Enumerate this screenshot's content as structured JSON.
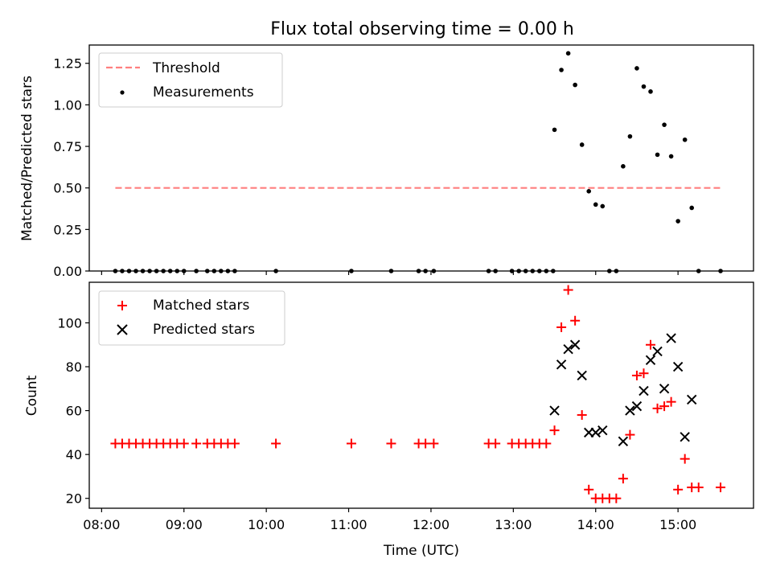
{
  "title": "Flux total observing time = 0.00 h",
  "chart_data": [
    {
      "type": "scatter",
      "ylabel": "Matched/Predicted stars",
      "ylim": [
        0,
        1.36
      ],
      "xlim": [
        "07:51",
        "15:55"
      ],
      "y_ticks": [
        0,
        0.25,
        0.5,
        0.75,
        1.0,
        1.25
      ],
      "y_tick_labels": [
        "0.00",
        "0.25",
        "0.50",
        "0.75",
        "1.00",
        "1.25"
      ],
      "legend": {
        "placement": "upper left",
        "entries": [
          "Threshold",
          "Measurements"
        ]
      },
      "threshold": {
        "name": "Threshold",
        "x_start": "08:10",
        "x_end": "15:32",
        "y": 0.5,
        "color": "#ff7f7f",
        "style": "dashed"
      },
      "series": [
        {
          "name": "Measurements",
          "color": "#000000",
          "marker": "dot",
          "points": [
            [
              "08:10",
              0
            ],
            [
              "08:15",
              0
            ],
            [
              "08:20",
              0
            ],
            [
              "08:25",
              0
            ],
            [
              "08:30",
              0
            ],
            [
              "08:35",
              0
            ],
            [
              "08:40",
              0
            ],
            [
              "08:45",
              0
            ],
            [
              "08:50",
              0
            ],
            [
              "08:55",
              0
            ],
            [
              "09:00",
              0
            ],
            [
              "09:09",
              0
            ],
            [
              "09:17",
              0
            ],
            [
              "09:22",
              0
            ],
            [
              "09:27",
              0
            ],
            [
              "09:32",
              0
            ],
            [
              "09:37",
              0
            ],
            [
              "10:07",
              0
            ],
            [
              "11:02",
              0
            ],
            [
              "11:31",
              0
            ],
            [
              "11:51",
              0
            ],
            [
              "11:56",
              0
            ],
            [
              "12:02",
              0
            ],
            [
              "12:42",
              0
            ],
            [
              "12:47",
              0
            ],
            [
              "12:59",
              0
            ],
            [
              "13:04",
              0
            ],
            [
              "13:09",
              0
            ],
            [
              "13:14",
              0
            ],
            [
              "13:19",
              0
            ],
            [
              "13:24",
              0
            ],
            [
              "13:29",
              0
            ],
            [
              "13:30",
              0.85
            ],
            [
              "13:35",
              1.21
            ],
            [
              "13:40",
              1.31
            ],
            [
              "13:45",
              1.12
            ],
            [
              "13:50",
              0.76
            ],
            [
              "13:55",
              0.48
            ],
            [
              "14:00",
              0.4
            ],
            [
              "14:05",
              0.39
            ],
            [
              "14:10",
              0
            ],
            [
              "14:15",
              0
            ],
            [
              "14:20",
              0.63
            ],
            [
              "14:25",
              0.81
            ],
            [
              "14:30",
              1.22
            ],
            [
              "14:35",
              1.11
            ],
            [
              "14:40",
              1.08
            ],
            [
              "14:45",
              0.7
            ],
            [
              "14:50",
              0.88
            ],
            [
              "14:55",
              0.69
            ],
            [
              "15:00",
              0.3
            ],
            [
              "15:05",
              0.79
            ],
            [
              "15:10",
              0.38
            ],
            [
              "15:15",
              0
            ],
            [
              "15:31",
              0
            ]
          ]
        }
      ]
    },
    {
      "type": "scatter",
      "xlabel": "Time (UTC)",
      "ylabel": "Count",
      "ylim": [
        15.5,
        118.5
      ],
      "xlim": [
        "07:51",
        "15:55"
      ],
      "y_ticks": [
        20,
        40,
        60,
        80,
        100
      ],
      "x_ticks": [
        "08:00",
        "09:00",
        "10:00",
        "11:00",
        "12:00",
        "13:00",
        "14:00",
        "15:00"
      ],
      "legend": {
        "placement": "upper left",
        "entries": [
          "Matched stars",
          "Predicted stars"
        ]
      },
      "series": [
        {
          "name": "Matched stars",
          "color": "#ff0000",
          "marker": "plus",
          "points": [
            [
              "08:10",
              45
            ],
            [
              "08:15",
              45
            ],
            [
              "08:20",
              45
            ],
            [
              "08:25",
              45
            ],
            [
              "08:30",
              45
            ],
            [
              "08:35",
              45
            ],
            [
              "08:40",
              45
            ],
            [
              "08:45",
              45
            ],
            [
              "08:50",
              45
            ],
            [
              "08:55",
              45
            ],
            [
              "09:00",
              45
            ],
            [
              "09:09",
              45
            ],
            [
              "09:17",
              45
            ],
            [
              "09:22",
              45
            ],
            [
              "09:27",
              45
            ],
            [
              "09:32",
              45
            ],
            [
              "09:37",
              45
            ],
            [
              "10:07",
              45
            ],
            [
              "11:02",
              45
            ],
            [
              "11:31",
              45
            ],
            [
              "11:51",
              45
            ],
            [
              "11:56",
              45
            ],
            [
              "12:02",
              45
            ],
            [
              "12:42",
              45
            ],
            [
              "12:47",
              45
            ],
            [
              "12:59",
              45
            ],
            [
              "13:04",
              45
            ],
            [
              "13:09",
              45
            ],
            [
              "13:14",
              45
            ],
            [
              "13:19",
              45
            ],
            [
              "13:24",
              45
            ],
            [
              "13:30",
              51
            ],
            [
              "13:35",
              98
            ],
            [
              "13:40",
              115
            ],
            [
              "13:45",
              101
            ],
            [
              "13:50",
              58
            ],
            [
              "13:55",
              24
            ],
            [
              "14:00",
              20
            ],
            [
              "14:05",
              20
            ],
            [
              "14:10",
              20
            ],
            [
              "14:15",
              20
            ],
            [
              "14:20",
              29
            ],
            [
              "14:25",
              49
            ],
            [
              "14:30",
              76
            ],
            [
              "14:35",
              77
            ],
            [
              "14:40",
              90
            ],
            [
              "14:45",
              61
            ],
            [
              "14:50",
              62
            ],
            [
              "14:55",
              64
            ],
            [
              "15:00",
              24
            ],
            [
              "15:05",
              38
            ],
            [
              "15:10",
              25
            ],
            [
              "15:15",
              25
            ],
            [
              "15:31",
              25
            ]
          ]
        },
        {
          "name": "Predicted stars",
          "color": "#000000",
          "marker": "x",
          "points": [
            [
              "13:30",
              60
            ],
            [
              "13:35",
              81
            ],
            [
              "13:40",
              88
            ],
            [
              "13:45",
              90
            ],
            [
              "13:50",
              76
            ],
            [
              "13:55",
              50
            ],
            [
              "14:00",
              50
            ],
            [
              "14:05",
              51
            ],
            [
              "14:20",
              46
            ],
            [
              "14:25",
              60
            ],
            [
              "14:30",
              62
            ],
            [
              "14:35",
              69
            ],
            [
              "14:40",
              83
            ],
            [
              "14:45",
              87
            ],
            [
              "14:50",
              70
            ],
            [
              "14:55",
              93
            ],
            [
              "15:00",
              80
            ],
            [
              "15:05",
              48
            ],
            [
              "15:10",
              65
            ]
          ]
        }
      ]
    }
  ]
}
